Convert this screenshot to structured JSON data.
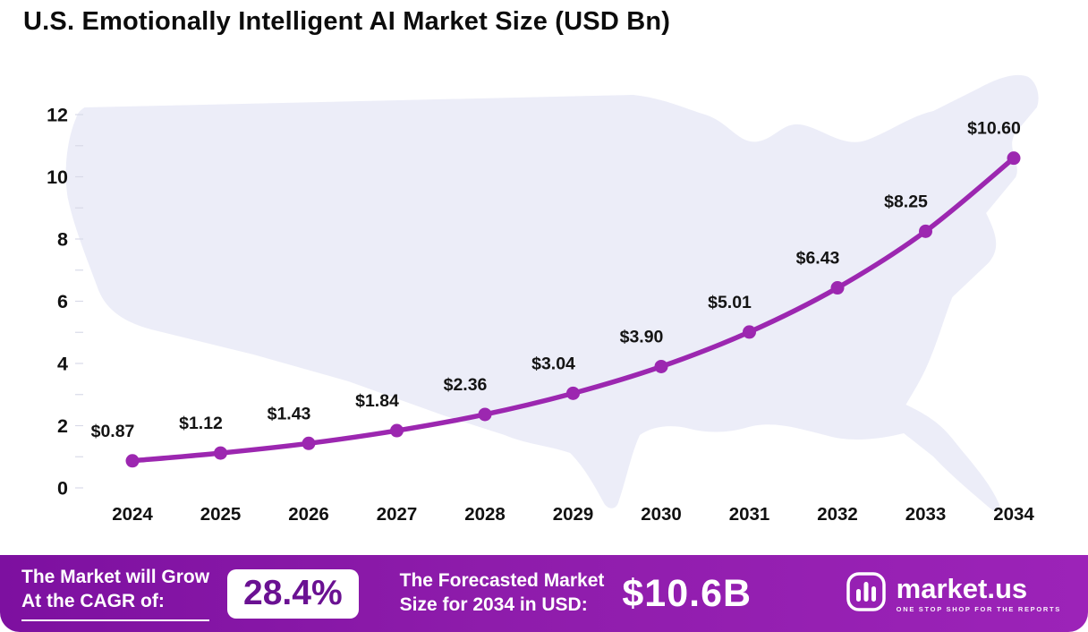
{
  "page": {
    "title": "U.S. Emotionally Intelligent AI Market Size (USD Bn)"
  },
  "chart_data": {
    "type": "line",
    "title": "U.S. Emotionally Intelligent AI Market Size (USD Bn)",
    "x": [
      "2024",
      "2025",
      "2026",
      "2027",
      "2028",
      "2029",
      "2030",
      "2031",
      "2032",
      "2033",
      "2034"
    ],
    "values": [
      0.87,
      1.12,
      1.43,
      1.84,
      2.36,
      3.04,
      3.9,
      5.01,
      6.43,
      8.25,
      10.6
    ],
    "point_labels": [
      "$0.87",
      "$1.12",
      "$1.43",
      "$1.84",
      "$2.36",
      "$3.04",
      "$3.90",
      "$5.01",
      "$6.43",
      "$8.25",
      "$10.60"
    ],
    "xlabel": "",
    "ylabel": "",
    "ylim": [
      0,
      12
    ],
    "yticks": [
      0,
      2,
      4,
      6,
      8,
      10,
      12
    ],
    "grid": false,
    "legend": false,
    "line_color": "#9C27B0",
    "background": "faint U.S. map silhouette",
    "map_color": "#ECEDF8"
  },
  "footer": {
    "bg_color": "#8E24AA",
    "cagr_label_line1": "The Market will Grow",
    "cagr_label_line2": "At the CAGR of:",
    "cagr_value": "28.4%",
    "forecast_label_line1": "The Forecasted Market",
    "forecast_label_line2": "Size for 2034 in USD:",
    "forecast_value": "$10.6B",
    "brand": {
      "name": "market.us",
      "tagline": "ONE STOP SHOP FOR THE REPORTS"
    }
  }
}
